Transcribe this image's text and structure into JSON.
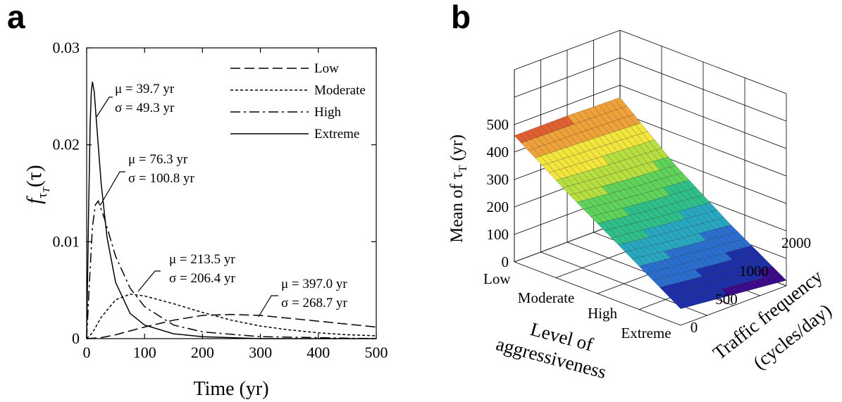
{
  "panel_a": {
    "panel_label": "a",
    "chart_data": {
      "type": "line",
      "xlabel": "Time (yr)",
      "ylabel": "fτT(τ)",
      "xlim": [
        0,
        500
      ],
      "ylim": [
        0,
        0.03
      ],
      "x_ticks": [
        "0",
        "100",
        "200",
        "300",
        "400",
        "500"
      ],
      "y_ticks": [
        "0",
        "0.01",
        "0.02",
        "0.03"
      ],
      "grid": false,
      "legend_position": "top-right",
      "series": [
        {
          "name": "Low",
          "dash": "dashed",
          "mu": 397.0,
          "sigma": 268.7,
          "annotation": {
            "mu": "μ = 397.0 yr",
            "sigma": "σ = 268.7 yr"
          },
          "points": [
            [
              0,
              0
            ],
            [
              25,
              0.0001
            ],
            [
              50,
              0.0004
            ],
            [
              100,
              0.0012
            ],
            [
              150,
              0.0019
            ],
            [
              200,
              0.0024
            ],
            [
              250,
              0.0025
            ],
            [
              300,
              0.0024
            ],
            [
              350,
              0.0021
            ],
            [
              400,
              0.0018
            ],
            [
              450,
              0.0015
            ],
            [
              500,
              0.0012
            ]
          ]
        },
        {
          "name": "Moderate",
          "dash": "dotted",
          "mu": 213.5,
          "sigma": 206.4,
          "annotation": {
            "mu": "μ = 213.5 yr",
            "sigma": "σ = 206.4 yr"
          },
          "points": [
            [
              0,
              0
            ],
            [
              10,
              0.0006
            ],
            [
              25,
              0.0022
            ],
            [
              50,
              0.004
            ],
            [
              75,
              0.0046
            ],
            [
              100,
              0.0044
            ],
            [
              150,
              0.0036
            ],
            [
              200,
              0.0027
            ],
            [
              250,
              0.0019
            ],
            [
              300,
              0.0013
            ],
            [
              350,
              0.0009
            ],
            [
              400,
              0.0006
            ],
            [
              450,
              0.0004
            ],
            [
              500,
              0.0003
            ]
          ]
        },
        {
          "name": "High",
          "dash": "dashdot",
          "mu": 76.3,
          "sigma": 100.8,
          "annotation": {
            "mu": "μ = 76.3 yr",
            "sigma": "σ = 100.8 yr"
          },
          "points": [
            [
              0,
              0
            ],
            [
              5,
              0.006
            ],
            [
              10,
              0.0115
            ],
            [
              15,
              0.0138
            ],
            [
              20,
              0.0142
            ],
            [
              30,
              0.0125
            ],
            [
              50,
              0.0085
            ],
            [
              75,
              0.0052
            ],
            [
              100,
              0.0033
            ],
            [
              150,
              0.0014
            ],
            [
              200,
              0.0007
            ],
            [
              300,
              0.0002
            ],
            [
              400,
              0.0001
            ],
            [
              500,
              0
            ]
          ]
        },
        {
          "name": "Extreme",
          "dash": "solid",
          "mu": 39.7,
          "sigma": 49.3,
          "annotation": {
            "mu": "μ = 39.7 yr",
            "sigma": "σ = 49.3 yr"
          },
          "points": [
            [
              0,
              0
            ],
            [
              3,
              0.012
            ],
            [
              6,
              0.022
            ],
            [
              8,
              0.0255
            ],
            [
              10,
              0.0265
            ],
            [
              13,
              0.0255
            ],
            [
              18,
              0.0215
            ],
            [
              25,
              0.016
            ],
            [
              35,
              0.0105
            ],
            [
              50,
              0.0058
            ],
            [
              75,
              0.0026
            ],
            [
              100,
              0.0014
            ],
            [
              150,
              0.0005
            ],
            [
              200,
              0.0002
            ],
            [
              300,
              0
            ],
            [
              500,
              0
            ]
          ]
        }
      ]
    }
  },
  "panel_b": {
    "panel_label": "b",
    "chart_data": {
      "type": "surface",
      "zlabel": "Mean of τT (yr)",
      "zlim": [
        0,
        500
      ],
      "z_ticks": [
        "0",
        "100",
        "200",
        "300",
        "400",
        "500"
      ],
      "x_axis": {
        "label_line1": "Level of",
        "label_line2": "aggressiveness",
        "categories": [
          "Low",
          "Moderate",
          "High",
          "Extreme"
        ]
      },
      "y_axis": {
        "label_line1": "Traffic frequency",
        "label_line2": "(cycles/day)",
        "ticks": [
          "0",
          "500",
          "1000",
          "2000"
        ],
        "range": [
          0,
          2000
        ]
      },
      "colormap": [
        "#3a0a8a",
        "#1c2ea8",
        "#2a6ed0",
        "#28a8c0",
        "#2fc08a",
        "#5fd35a",
        "#b6e040",
        "#f2e63c",
        "#f0a23a",
        "#e06030"
      ],
      "surface_values": {
        "aggressiveness": [
          "Low",
          "Moderate",
          "High",
          "Extreme"
        ],
        "traffic_frequency": [
          0,
          1000,
          2000
        ],
        "mean_tau_T": [
          [
            460,
            460,
            455
          ],
          [
            320,
            300,
            285
          ],
          [
            190,
            165,
            145
          ],
          [
            60,
            40,
            20
          ]
        ]
      }
    }
  }
}
